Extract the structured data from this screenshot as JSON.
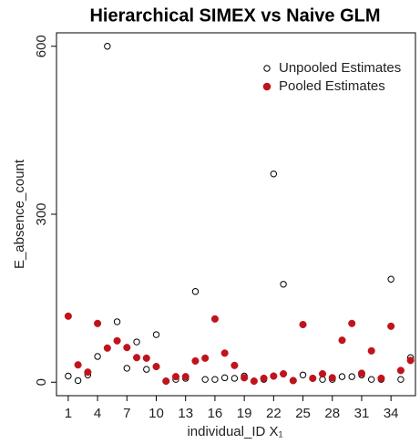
{
  "chart_data": {
    "type": "scatter",
    "title": "Hierarchical SIMEX  vs Naive GLM",
    "xlabel": "individual_ID X₁",
    "ylabel": "E_absence_count",
    "x": [
      1,
      2,
      3,
      4,
      5,
      6,
      7,
      8,
      9,
      10,
      11,
      12,
      13,
      14,
      15,
      16,
      17,
      18,
      19,
      20,
      21,
      22,
      23,
      24,
      25,
      26,
      27,
      28,
      29,
      30,
      31,
      32,
      33,
      34,
      35,
      36
    ],
    "series": [
      {
        "name": "Unpooled Estimates",
        "color": "#000000",
        "marker": "open",
        "values": [
          11,
          3,
          13,
          46,
          600,
          108,
          25,
          72,
          23,
          85,
          2,
          5,
          7,
          162,
          5,
          5,
          8,
          7,
          11,
          2,
          5,
          372,
          175,
          3,
          13,
          7,
          5,
          5,
          10,
          10,
          13,
          5,
          5,
          184,
          5,
          44
        ]
      },
      {
        "name": "Pooled Estimates",
        "color": "#c0141c",
        "marker": "filled",
        "values": [
          118,
          31,
          18,
          105,
          61,
          74,
          62,
          44,
          43,
          28,
          2,
          10,
          10,
          38,
          43,
          113,
          52,
          30,
          8,
          2,
          7,
          11,
          15,
          3,
          103,
          7,
          15,
          8,
          75,
          105,
          16,
          56,
          7,
          100,
          21,
          39
        ]
      }
    ],
    "xlim": [
      -0.2,
      36.5
    ],
    "ylim": [
      -24,
      624
    ],
    "xticks": [
      1,
      4,
      7,
      10,
      13,
      16,
      19,
      22,
      25,
      28,
      31,
      34
    ],
    "yticks": [
      0,
      300,
      600
    ],
    "legend": "top-right"
  }
}
